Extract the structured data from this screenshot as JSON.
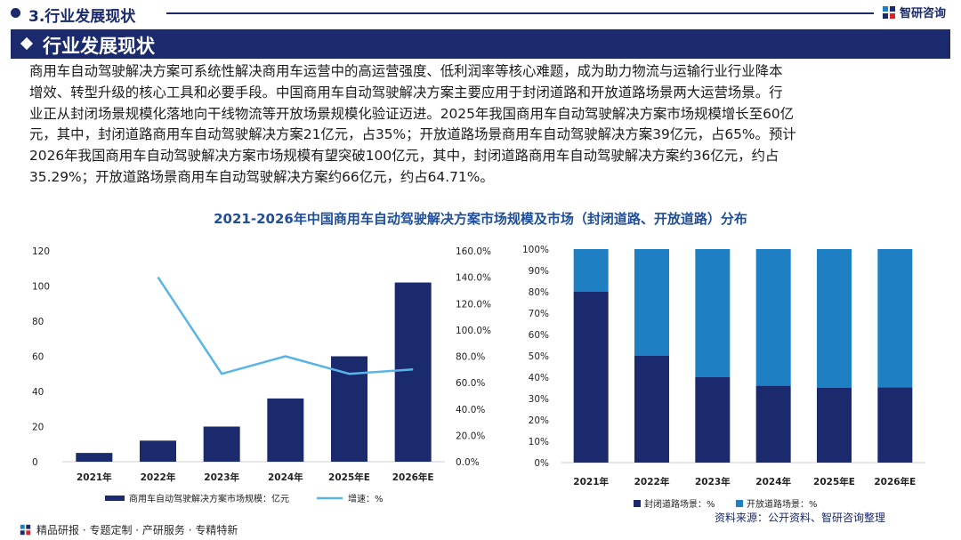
{
  "header": {
    "section_label": "3.行业发展现状",
    "logo_text": "智研咨询",
    "logo_icon": "zhiyan-logo-icon"
  },
  "banner": {
    "title": "行业发展现状"
  },
  "paragraph": {
    "lines": [
      "商用车自动驾驶解决方案可系统性解决商用车运营中的高运营强度、低利润率等核心难题，成为助力物流与运输行业行业降本",
      "增效、转型升级的核心工具和必要手段。中国商用车自动驾驶解决方案主要应用于封闭道路和开放道路场景两大运营场景。行",
      "业正从封闭场景规模化落地向干线物流等开放场景规模化验证迈进。2025年我国商用车自动驾驶解决方案市场规模增长至60亿",
      "元，其中，封闭道路商用车自动驾驶解决方案21亿元，占35%；开放道路场景商用车自动驾驶解决方案39亿元，占65%。预计",
      "2026年我国商用车自动驾驶解决方案市场规模有望突破100亿元，其中，封闭道路商用车自动驾驶解决方案约36亿元，约占",
      "35.29%；开放道路场景商用车自动驾驶解决方案约66亿元，约占64.71%。"
    ]
  },
  "chart_title": "2021-2026年中国商用车自动驾驶解决方案市场规模及市场（封闭道路、开放道路）分布",
  "chart_data": [
    {
      "type": "bar",
      "categories": [
        "2021年",
        "2022年",
        "2023年",
        "2024年",
        "2025年E",
        "2026年E"
      ],
      "series": [
        {
          "name": "商用车自动驾驶解决方案市场规模：亿元",
          "type": "bar",
          "axis": "left",
          "color": "#1a2a6c",
          "values": [
            5,
            12,
            20,
            36,
            60,
            102
          ]
        },
        {
          "name": "增速：%",
          "type": "line",
          "axis": "right",
          "color": "#5ab4e5",
          "values": [
            null,
            140,
            66.7,
            80,
            66.7,
            70
          ]
        }
      ],
      "ylim": [
        0,
        120
      ],
      "yticks": [
        "0",
        "20",
        "40",
        "60",
        "80",
        "100",
        "120"
      ],
      "y2lim": [
        0,
        160
      ],
      "y2ticks": [
        "0.0%",
        "20.0%",
        "40.0%",
        "60.0%",
        "80.0%",
        "100.0%",
        "120.0%",
        "140.0%",
        "160.0%"
      ],
      "legend": "bottom"
    },
    {
      "type": "bar",
      "stacked": true,
      "percent": true,
      "categories": [
        "2021年",
        "2022年",
        "2023年",
        "2024年",
        "2025年E",
        "2026年E"
      ],
      "series": [
        {
          "name": "封闭道路场景：%",
          "color": "#1a2a6c",
          "values": [
            80,
            50,
            40,
            36,
            35,
            35.29
          ]
        },
        {
          "name": "开放道路场景：%",
          "color": "#1e7fc2",
          "values": [
            20,
            50,
            60,
            64,
            65,
            64.71
          ]
        }
      ],
      "ylim": [
        0,
        100
      ],
      "yticks": [
        "0%",
        "10%",
        "20%",
        "30%",
        "40%",
        "50%",
        "60%",
        "70%",
        "80%",
        "90%",
        "100%"
      ],
      "legend": "bottom"
    }
  ],
  "source": "资料来源：公开资料、智研咨询整理",
  "footer": {
    "text": "精品研报 · 专题定制 · 产研服务 · 专精特新",
    "icon": "zhiyan-logo-icon"
  }
}
